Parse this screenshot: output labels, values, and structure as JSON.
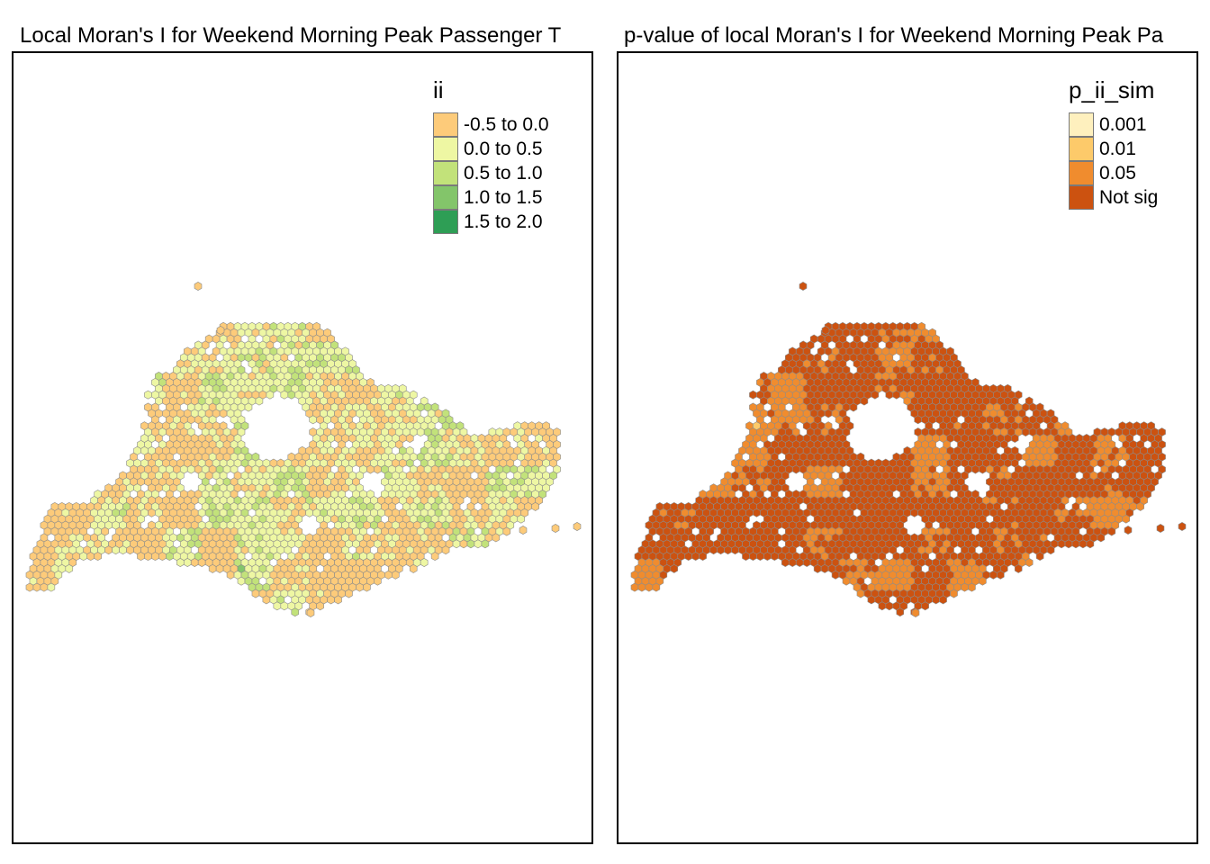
{
  "maps": [
    {
      "title": "Local Moran's I for Weekend Morning Peak Passenger T",
      "legend": {
        "title": "ii",
        "items": [
          {
            "label": "-0.5 to 0.0",
            "color": "#FDCB7A"
          },
          {
            "label": "0.0 to 0.5",
            "color": "#EEF7A3"
          },
          {
            "label": "0.5 to 1.0",
            "color": "#C2E27A"
          },
          {
            "label": "1.0 to 1.5",
            "color": "#83C56A"
          },
          {
            "label": "1.5 to 2.0",
            "color": "#2E9E55"
          }
        ]
      },
      "hex_border_color": "#8c8c8c",
      "class_frequencies": {
        "-0.5 to 0.0": 0.5,
        "0.0 to 0.5": 0.3,
        "0.5 to 1.0": 0.17,
        "1.0 to 1.5": 0.025,
        "1.5 to 2.0": 0.005
      }
    },
    {
      "title": "p-value of local Moran's I for Weekend Morning Peak Pa",
      "legend": {
        "title": "p_ii_sim",
        "items": [
          {
            "label": "0.001",
            "color": "#FEF0BE"
          },
          {
            "label": "0.01",
            "color": "#FDCA6A"
          },
          {
            "label": "0.05",
            "color": "#F08C2E"
          },
          {
            "label": "Not sig",
            "color": "#CC5210"
          }
        ]
      },
      "hex_border_color": "#8c8c8c",
      "class_frequencies": {
        "0.001": 0.0,
        "0.01": 0.01,
        "0.05": 0.34,
        "Not sig": 0.65
      }
    }
  ]
}
